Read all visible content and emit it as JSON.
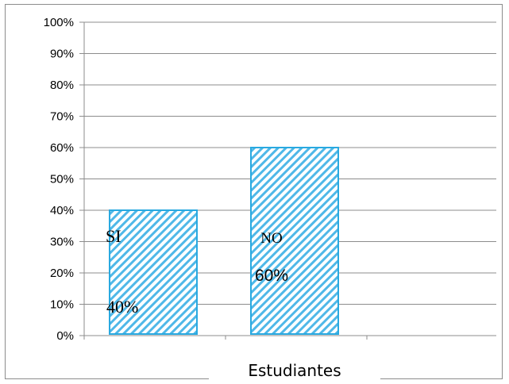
{
  "chart_data": {
    "type": "bar",
    "categories": [
      "SI",
      "NO"
    ],
    "values": [
      40,
      60
    ],
    "value_labels": [
      "40%",
      "60%"
    ],
    "xlabel": "Estudiantes",
    "ylabel": "",
    "ylim": [
      0,
      100
    ],
    "y_ticks": [
      "0%",
      "10%",
      "20%",
      "30%",
      "40%",
      "50%",
      "60%",
      "70%",
      "80%",
      "90%",
      "100%"
    ],
    "grid": true,
    "legend": "none",
    "colors": {
      "bar_stroke": "#29a9e0",
      "bar_hatch": "#4fb8e8",
      "grid": "#8c8c8c"
    }
  }
}
